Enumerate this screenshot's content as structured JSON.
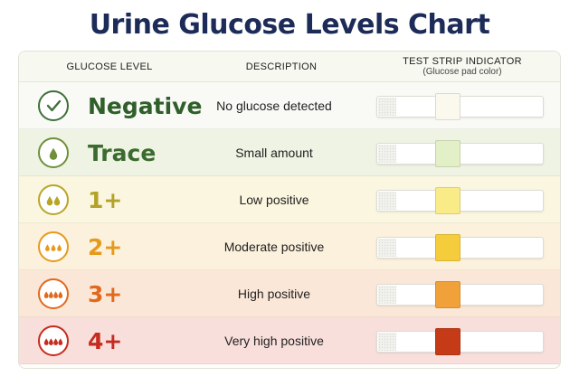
{
  "title": "Urine Glucose Levels Chart",
  "header": {
    "level": "GLUCOSE LEVEL",
    "description": "DESCRIPTION",
    "strip": "TEST STRIP INDICATOR",
    "strip_sub": "(Glucose pad color)"
  },
  "rows": [
    {
      "label": "Negative",
      "description": "No glucose detected",
      "icon": "check-icon",
      "drops": 0,
      "label_color": "#2f5f2a",
      "icon_color": "#3f6f38",
      "row_bg": "#f9faf6",
      "pad_color": "#fbf8ee"
    },
    {
      "label": "Trace",
      "description": "Small amount",
      "icon": "droplet-icon",
      "drops": 1,
      "label_color": "#3b6b2e",
      "icon_color": "#6f8f3a",
      "row_bg": "#eef3e3",
      "pad_color": "#e3efc6"
    },
    {
      "label": "1+",
      "description": "Low positive",
      "icon": "droplet-icon",
      "drops": 2,
      "label_color": "#b3a227",
      "icon_color": "#b8a528",
      "row_bg": "#fbf6df",
      "pad_color": "#f8eb88"
    },
    {
      "label": "2+",
      "description": "Moderate positive",
      "icon": "droplet-icon",
      "drops": 3,
      "label_color": "#e59a1c",
      "icon_color": "#e59a1c",
      "row_bg": "#fcf1dc",
      "pad_color": "#f5cd3c"
    },
    {
      "label": "3+",
      "description": "High positive",
      "icon": "droplet-icon",
      "drops": 4,
      "label_color": "#e0691e",
      "icon_color": "#e0691e",
      "row_bg": "#fbe7d8",
      "pad_color": "#f1a13a"
    },
    {
      "label": "4+",
      "description": "Very high positive",
      "icon": "droplet-icon",
      "drops": 4,
      "label_color": "#c62b1f",
      "icon_color": "#c62b1f",
      "row_bg": "#f8dfdb",
      "pad_color": "#c53a17"
    }
  ]
}
